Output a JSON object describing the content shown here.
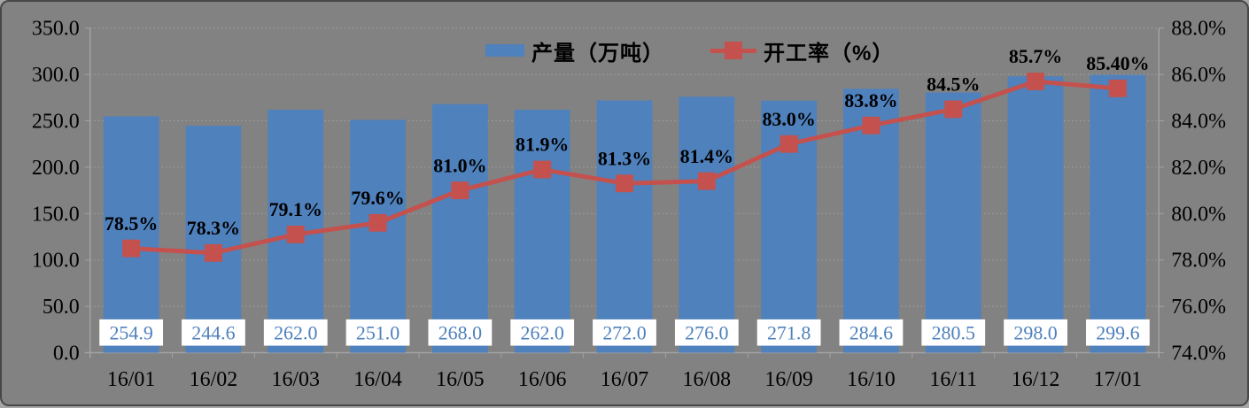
{
  "chart": {
    "background_color": "#828282",
    "frame_border_color": "#474747",
    "grid_color": "#a2a2a2",
    "axis_color": "#a3a3a3",
    "bar_color": "#4F81BD",
    "line_color": "#C4514D",
    "value_box_fill": "#FFFFFF",
    "value_text_color": "#4F81BD",
    "label_text_color": "#000000"
  },
  "chart_data": {
    "type": "combo",
    "title": "",
    "categories": [
      "16/01",
      "16/02",
      "16/03",
      "16/04",
      "16/05",
      "16/06",
      "16/07",
      "16/08",
      "16/09",
      "16/10",
      "16/11",
      "16/12",
      "17/01"
    ],
    "series": [
      {
        "name": "产量（万吨）",
        "type": "bar",
        "axis": "left",
        "color": "#4F81BD",
        "values": [
          254.9,
          244.6,
          262.0,
          251.0,
          268.0,
          262.0,
          272.0,
          276.0,
          271.8,
          284.6,
          280.5,
          298.0,
          299.6
        ],
        "data_labels": [
          "254.9",
          "244.6",
          "262.0",
          "251.0",
          "268.0",
          "262.0",
          "272.0",
          "276.0",
          "271.8",
          "284.6",
          "280.5",
          "298.0",
          "299.6"
        ]
      },
      {
        "name": "开工率（%）",
        "type": "line",
        "axis": "right",
        "marker": "square",
        "color": "#C4514D",
        "values": [
          78.5,
          78.3,
          79.1,
          79.6,
          81.0,
          81.9,
          81.3,
          81.4,
          83.0,
          83.8,
          84.5,
          85.7,
          85.4
        ],
        "data_labels": [
          "78.5%",
          "78.3%",
          "79.1%",
          "79.6%",
          "81.0%",
          "81.9%",
          "81.3%",
          "81.4%",
          "83.0%",
          "83.8%",
          "84.5%",
          "85.7%",
          "85.40%"
        ]
      }
    ],
    "left_axis": {
      "min": 0,
      "max": 350,
      "step": 50,
      "tick_labels": [
        "0.0",
        "50.0",
        "100.0",
        "150.0",
        "200.0",
        "250.0",
        "300.0",
        "350.0"
      ]
    },
    "right_axis": {
      "min": 74,
      "max": 88,
      "step": 2,
      "tick_labels": [
        "74.0%",
        "76.0%",
        "78.0%",
        "80.0%",
        "82.0%",
        "84.0%",
        "86.0%",
        "88.0%"
      ]
    },
    "grid": {
      "horizontal": true,
      "style": "dotted"
    },
    "legend_position": "top-center"
  }
}
